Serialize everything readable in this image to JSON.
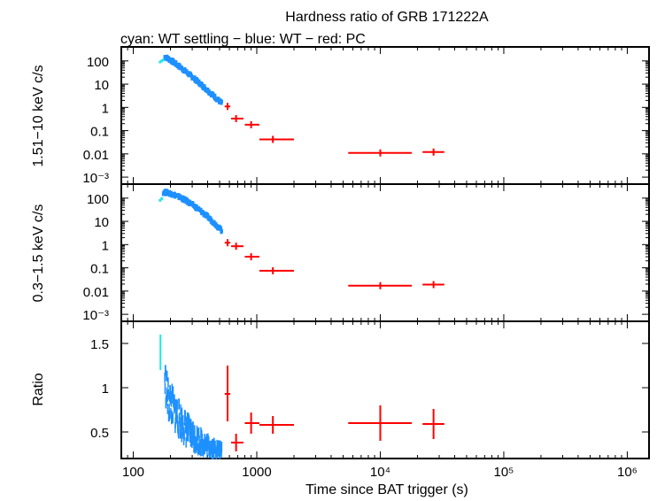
{
  "title": "Hardness ratio of GRB 171222A",
  "subtitle": "cyan: WT settling − blue: WT − red: PC",
  "colors": {
    "wt_settling": "#22e6e6",
    "wt": "#1e90ff",
    "pc": "#ff0000",
    "axis": "#000000"
  },
  "chart_data": [
    {
      "type": "scatter",
      "panel": "hard",
      "ylabel": "1.51−10 keV c/s",
      "xscale": "log",
      "yscale": "log",
      "xlim": [
        80,
        1500000
      ],
      "ylim": [
        0.0005,
        400
      ],
      "ytick_labels": [
        "100",
        "10",
        "1",
        "0.1",
        "0.01",
        "10⁻³"
      ],
      "series": [
        {
          "name": "WT settling",
          "points": [
            [
              165,
              90
            ],
            [
              170,
              100
            ],
            [
              175,
              110
            ]
          ]
        },
        {
          "name": "WT",
          "x": [
            180,
            520
          ],
          "y": [
            150,
            1.5
          ]
        },
        {
          "name": "PC",
          "points": [
            {
              "x": 580,
              "y": 1.1,
              "xlo": 550,
              "xhi": 610
            },
            {
              "x": 680,
              "y": 0.33,
              "xlo": 620,
              "xhi": 780
            },
            {
              "x": 900,
              "y": 0.18,
              "xlo": 800,
              "xhi": 1050
            },
            {
              "x": 1350,
              "y": 0.042,
              "xlo": 1050,
              "xhi": 2000
            },
            {
              "x": 10000,
              "y": 0.011,
              "xlo": 5500,
              "xhi": 18000
            },
            {
              "x": 27000,
              "y": 0.012,
              "xlo": 22000,
              "xhi": 33000
            }
          ]
        }
      ]
    },
    {
      "type": "scatter",
      "panel": "soft",
      "ylabel": "0.3−1.5 keV c/s",
      "xscale": "log",
      "yscale": "log",
      "xlim": [
        80,
        1500000
      ],
      "ylim": [
        0.0005,
        400
      ],
      "ytick_labels": [
        "100",
        "10",
        "1",
        "0.1",
        "0.01",
        "10⁻³"
      ],
      "series": [
        {
          "name": "WT settling",
          "points": [
            [
              165,
              80
            ],
            [
              170,
              95
            ]
          ]
        },
        {
          "name": "WT",
          "x": [
            175,
            520
          ],
          "y": [
            180,
            4
          ]
        },
        {
          "name": "PC",
          "points": [
            {
              "x": 580,
              "y": 1.2,
              "xlo": 550,
              "xhi": 610
            },
            {
              "x": 680,
              "y": 0.85,
              "xlo": 620,
              "xhi": 780
            },
            {
              "x": 900,
              "y": 0.3,
              "xlo": 800,
              "xhi": 1050
            },
            {
              "x": 1350,
              "y": 0.075,
              "xlo": 1050,
              "xhi": 2000
            },
            {
              "x": 10000,
              "y": 0.017,
              "xlo": 5500,
              "xhi": 18000
            },
            {
              "x": 27000,
              "y": 0.019,
              "xlo": 22000,
              "xhi": 33000
            }
          ]
        }
      ]
    },
    {
      "type": "scatter",
      "panel": "ratio",
      "ylabel": "Ratio",
      "xlabel": "Time since BAT trigger (s)",
      "xscale": "log",
      "yscale": "linear",
      "xlim": [
        80,
        1500000
      ],
      "ylim": [
        0.2,
        1.75
      ],
      "ytick_labels": [
        "1.5",
        "1",
        "0.5"
      ],
      "xtick_labels": [
        "100",
        "1000",
        "10⁴",
        "10⁵",
        "10⁶"
      ],
      "series": [
        {
          "name": "WT settling",
          "points": [
            {
              "x": 166,
              "y": 1.45,
              "ylo": 1.2,
              "yhi": 1.6
            }
          ]
        },
        {
          "name": "WT",
          "x": [
            180,
            520
          ],
          "y": [
            0.95,
            0.3
          ]
        },
        {
          "name": "PC",
          "points": [
            {
              "x": 580,
              "y": 0.93,
              "ylo": 0.62,
              "yhi": 1.25,
              "xlo": 550,
              "xhi": 610
            },
            {
              "x": 680,
              "y": 0.38,
              "ylo": 0.28,
              "yhi": 0.48,
              "xlo": 620,
              "xhi": 780
            },
            {
              "x": 900,
              "y": 0.6,
              "ylo": 0.48,
              "yhi": 0.72,
              "xlo": 800,
              "xhi": 1050
            },
            {
              "x": 1350,
              "y": 0.58,
              "ylo": 0.48,
              "yhi": 0.68,
              "xlo": 1050,
              "xhi": 2000
            },
            {
              "x": 10000,
              "y": 0.6,
              "ylo": 0.4,
              "yhi": 0.8,
              "xlo": 5500,
              "xhi": 18000
            },
            {
              "x": 27000,
              "y": 0.59,
              "ylo": 0.42,
              "yhi": 0.76,
              "xlo": 22000,
              "xhi": 33000
            }
          ]
        }
      ]
    }
  ]
}
